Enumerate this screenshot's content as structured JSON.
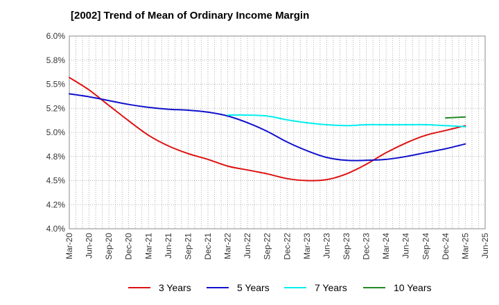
{
  "chart_data": {
    "type": "line",
    "title": "[2002]  Trend of Mean of Ordinary Income Margin",
    "xlabel": "",
    "ylabel": "",
    "x_ticks": [
      "Mar-20",
      "Jun-20",
      "Sep-20",
      "Dec-20",
      "Mar-21",
      "Jun-21",
      "Sep-21",
      "Dec-21",
      "Mar-22",
      "Jun-22",
      "Sep-22",
      "Dec-22",
      "Mar-23",
      "Jun-23",
      "Sep-23",
      "Dec-23",
      "Mar-24",
      "Jun-24",
      "Sep-24",
      "Dec-24",
      "Mar-25",
      "Jun-25"
    ],
    "y_ticks": [
      "4.0%",
      "4.2%",
      "4.5%",
      "4.8%",
      "5.0%",
      "5.2%",
      "5.5%",
      "5.8%",
      "6.0%"
    ],
    "ylim": [
      4.0,
      6.0
    ],
    "grid": true,
    "legend_position": "bottom",
    "series": [
      {
        "name": "3 Years",
        "color": "#dd1111",
        "x": [
          "Mar-20",
          "Jun-20",
          "Sep-20",
          "Dec-20",
          "Mar-21",
          "Jun-21",
          "Sep-21",
          "Dec-21",
          "Mar-22",
          "Jun-22",
          "Sep-22",
          "Dec-22",
          "Mar-23",
          "Jun-23",
          "Sep-23",
          "Dec-23",
          "Mar-24",
          "Jun-24",
          "Sep-24",
          "Dec-24",
          "Mar-25"
        ],
        "values": [
          5.57,
          5.44,
          5.28,
          5.12,
          4.97,
          4.86,
          4.78,
          4.72,
          4.65,
          4.61,
          4.57,
          4.52,
          4.5,
          4.51,
          4.57,
          4.67,
          4.79,
          4.89,
          4.97,
          5.02,
          5.07
        ]
      },
      {
        "name": "5 Years",
        "color": "#1010cc",
        "x": [
          "Mar-20",
          "Jun-20",
          "Sep-20",
          "Dec-20",
          "Mar-21",
          "Jun-21",
          "Sep-21",
          "Dec-21",
          "Mar-22",
          "Jun-22",
          "Sep-22",
          "Dec-22",
          "Mar-23",
          "Jun-23",
          "Sep-23",
          "Dec-23",
          "Mar-24",
          "Jun-24",
          "Sep-24",
          "Dec-24",
          "Mar-25"
        ],
        "values": [
          5.4,
          5.37,
          5.33,
          5.29,
          5.26,
          5.24,
          5.23,
          5.21,
          5.17,
          5.1,
          5.01,
          4.9,
          4.81,
          4.74,
          4.71,
          4.71,
          4.72,
          4.75,
          4.79,
          4.83,
          4.88
        ]
      },
      {
        "name": "7 Years",
        "color": "#00eeee",
        "x": [
          "Mar-22",
          "Jun-22",
          "Sep-22",
          "Dec-22",
          "Mar-23",
          "Jun-23",
          "Sep-23",
          "Dec-23",
          "Mar-24",
          "Jun-24",
          "Sep-24",
          "Dec-24",
          "Mar-25"
        ],
        "values": [
          5.18,
          5.18,
          5.17,
          5.13,
          5.1,
          5.08,
          5.07,
          5.08,
          5.08,
          5.08,
          5.08,
          5.07,
          5.06
        ]
      },
      {
        "name": "10 Years",
        "color": "#228822",
        "x": [
          "Dec-24",
          "Mar-25"
        ],
        "values": [
          5.15,
          5.16
        ]
      }
    ]
  }
}
